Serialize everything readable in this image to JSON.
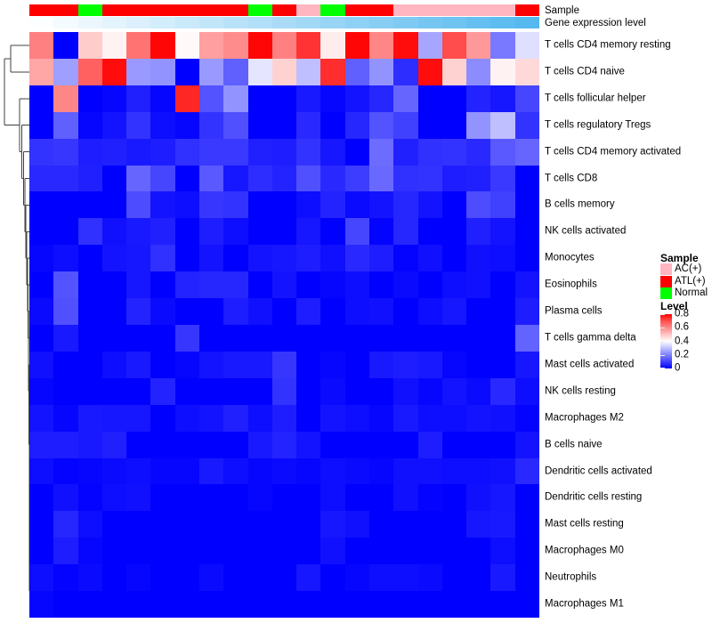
{
  "annotations": {
    "sample_label": "Sample",
    "gene_label": "Gene expression level",
    "sample_values": [
      "ATL(+)",
      "ATL(+)",
      "Normal",
      "ATL(+)",
      "ATL(+)",
      "ATL(+)",
      "ATL(+)",
      "ATL(+)",
      "ATL(+)",
      "Normal",
      "ATL(+)",
      "AC(+)",
      "Normal",
      "ATL(+)",
      "ATL(+)",
      "AC(+)",
      "AC(+)",
      "AC(+)",
      "AC(+)",
      "AC(+)",
      "ATL(+)"
    ],
    "sample_colors": {
      "AC(+)": "#FFB6C1",
      "ATL(+)": "#FF0000",
      "Normal": "#00FF00"
    },
    "gene_expression_values": [
      0,
      0.05,
      0.1,
      0.15,
      0.2,
      0.25,
      0.3,
      0.35,
      0.4,
      0.45,
      0.5,
      0.55,
      0.6,
      0.65,
      0.7,
      0.75,
      0.8,
      0.85,
      0.9,
      0.95,
      1.0
    ],
    "gene_gradient": {
      "low": "#FCFEFF",
      "high": "#55B8EF"
    }
  },
  "legend": {
    "sample_title": "Sample",
    "sample_items": [
      {
        "label": "AC(+)",
        "color": "#FFB6C1"
      },
      {
        "label": "ATL(+)",
        "color": "#FF0000"
      },
      {
        "label": "Normal",
        "color": "#00FF00"
      }
    ],
    "level_title": "Level",
    "level_ticks": [
      "0.8",
      "0.6",
      "0.4",
      "0.2",
      "0"
    ]
  },
  "chart_data": {
    "type": "heatmap",
    "columns": 21,
    "value_range": [
      0,
      0.8
    ],
    "colormap": {
      "low": "#0000FF",
      "mid": "#FFFFFF",
      "high": "#FF0000",
      "mid_value": 0.4
    },
    "rows": [
      {
        "label": "T cells CD4 memory resting",
        "values": [
          0.6,
          0,
          0.48,
          0.42,
          0.62,
          0.79,
          0.41,
          0.55,
          0.58,
          0.79,
          0.6,
          0.72,
          0.43,
          0.79,
          0.59,
          0.78,
          0.26,
          0.68,
          0.56,
          0.19,
          0.35
        ]
      },
      {
        "label": "T cells CD4 naive",
        "values": [
          0.54,
          0.25,
          0.65,
          0.78,
          0.24,
          0.23,
          0,
          0.24,
          0.15,
          0.36,
          0.47,
          0.3,
          0.73,
          0.15,
          0.23,
          0.07,
          0.78,
          0.47,
          0.22,
          0.42,
          0.46
        ]
      },
      {
        "label": "T cells follicular helper",
        "values": [
          0,
          0.59,
          0,
          0.01,
          0.05,
          0.01,
          0.74,
          0.13,
          0.23,
          0,
          0,
          0.04,
          0.01,
          0.03,
          0.06,
          0.16,
          0,
          0,
          0.055,
          0.035,
          0.11
        ]
      },
      {
        "label": "T cells regulatory  Tregs",
        "values": [
          0,
          0.15,
          0.01,
          0.03,
          0.08,
          0.02,
          0.01,
          0.08,
          0.125,
          0,
          0,
          0.065,
          0,
          0.06,
          0.13,
          0.1,
          0,
          0,
          0.23,
          0.3,
          0.08
        ]
      },
      {
        "label": "T cells CD4 memory activated",
        "values": [
          0.08,
          0.085,
          0.045,
          0.05,
          0.04,
          0.045,
          0.075,
          0.09,
          0.09,
          0.05,
          0.045,
          0.08,
          0.035,
          0,
          0.17,
          0.05,
          0.075,
          0.08,
          0.065,
          0.14,
          0.16
        ]
      },
      {
        "label": "T cells CD8",
        "values": [
          0.065,
          0.065,
          0.05,
          0,
          0.16,
          0.11,
          0,
          0.14,
          0.035,
          0.07,
          0.055,
          0.125,
          0.065,
          0.095,
          0.165,
          0.075,
          0.08,
          0.045,
          0.05,
          0.09,
          0
        ]
      },
      {
        "label": "B cells memory",
        "values": [
          0,
          0,
          0,
          0,
          0.12,
          0.03,
          0.02,
          0.085,
          0.08,
          0,
          0,
          0.02,
          0.055,
          0.015,
          0.03,
          0.06,
          0.03,
          0,
          0.12,
          0.1,
          0
        ]
      },
      {
        "label": "NK cells activated",
        "values": [
          0,
          0,
          0.075,
          0.025,
          0.04,
          0.05,
          0,
          0.045,
          0.02,
          0,
          0,
          0.035,
          0,
          0.11,
          0.005,
          0.06,
          0,
          0,
          0.05,
          0.03,
          0
        ]
      },
      {
        "label": "Monocytes",
        "values": [
          0.01,
          0.02,
          0,
          0.03,
          0.035,
          0.075,
          0,
          0.03,
          0,
          0.03,
          0.035,
          0.045,
          0.025,
          0.065,
          0.045,
          0.005,
          0.025,
          0,
          0.025,
          0.02,
          0
        ]
      },
      {
        "label": "Eosinophils",
        "values": [
          0,
          0.13,
          0,
          0,
          0.035,
          0,
          0.055,
          0.06,
          0.06,
          0,
          0.03,
          0,
          0.01,
          0.02,
          0,
          0.015,
          0,
          0.02,
          0.025,
          0,
          0.03
        ]
      },
      {
        "label": "Plasma cells",
        "values": [
          0.015,
          0.125,
          0,
          0,
          0.055,
          0.015,
          0,
          0,
          0.045,
          0.025,
          0,
          0.045,
          0,
          0.02,
          0.025,
          0,
          0.02,
          0.035,
          0,
          0,
          0.045
        ]
      },
      {
        "label": "T cells gamma delta",
        "values": [
          0,
          0.04,
          0,
          0,
          0,
          0,
          0.085,
          0,
          0,
          0,
          0,
          0,
          0,
          0,
          0,
          0,
          0,
          0,
          0,
          0,
          0.155
        ]
      },
      {
        "label": "Mast cells activated",
        "values": [
          0.025,
          0,
          0,
          0.02,
          0.04,
          0,
          0.01,
          0.03,
          0.04,
          0.04,
          0.085,
          0,
          0.01,
          0,
          0.04,
          0.045,
          0.04,
          0.01,
          0,
          0,
          0.035
        ]
      },
      {
        "label": "NK cells resting",
        "values": [
          0.01,
          0,
          0,
          0,
          0,
          0.055,
          0,
          0,
          0,
          0,
          0.08,
          0,
          0.015,
          0,
          0,
          0.025,
          0.01,
          0.03,
          0.015,
          0.065,
          0.02
        ]
      },
      {
        "label": "Macrophages M2",
        "values": [
          0.03,
          0.01,
          0.04,
          0.035,
          0.035,
          0,
          0.02,
          0.03,
          0.05,
          0.02,
          0.045,
          0,
          0.03,
          0.02,
          0.01,
          0.04,
          0.02,
          0.02,
          0.03,
          0.025,
          0.005
        ]
      },
      {
        "label": "B cells naive",
        "values": [
          0.045,
          0.045,
          0.04,
          0.05,
          0,
          0,
          0,
          0,
          0,
          0.04,
          0.055,
          0.03,
          0,
          0,
          0,
          0,
          0.045,
          0,
          0,
          0,
          0.03
        ]
      },
      {
        "label": "Dendritic cells activated",
        "values": [
          0.02,
          0.005,
          0.01,
          0.015,
          0.02,
          0.01,
          0.01,
          0.04,
          0.02,
          0.01,
          0.015,
          0.01,
          0.02,
          0.015,
          0.01,
          0.025,
          0.025,
          0.02,
          0.02,
          0.025,
          0.065
        ]
      },
      {
        "label": "Dendritic cells resting",
        "values": [
          0,
          0.025,
          0.005,
          0.02,
          0.025,
          0,
          0,
          0,
          0,
          0.01,
          0,
          0,
          0.02,
          0,
          0,
          0.025,
          0.005,
          0,
          0.025,
          0.035,
          0
        ]
      },
      {
        "label": "Mast cells resting",
        "values": [
          0,
          0.06,
          0.02,
          0,
          0,
          0,
          0,
          0,
          0,
          0,
          0,
          0,
          0.035,
          0.025,
          0,
          0,
          0,
          0,
          0.035,
          0.04,
          0
        ]
      },
      {
        "label": "Macrophages M0",
        "values": [
          0,
          0.045,
          0.01,
          0,
          0,
          0,
          0,
          0,
          0,
          0,
          0,
          0,
          0.025,
          0,
          0,
          0,
          0,
          0,
          0,
          0.02,
          0
        ]
      },
      {
        "label": "Neutrophils",
        "values": [
          0.02,
          0.005,
          0.015,
          0,
          0.01,
          0,
          0,
          0.015,
          0,
          0,
          0,
          0.035,
          0,
          0.01,
          0.02,
          0.02,
          0.015,
          0,
          0,
          0.04,
          0
        ]
      },
      {
        "label": "Macrophages M1",
        "values": [
          0.01,
          0,
          0,
          0,
          0,
          0,
          0,
          0,
          0,
          0,
          0,
          0,
          0,
          0,
          0,
          0,
          0,
          0,
          0,
          0,
          0
        ]
      }
    ]
  }
}
